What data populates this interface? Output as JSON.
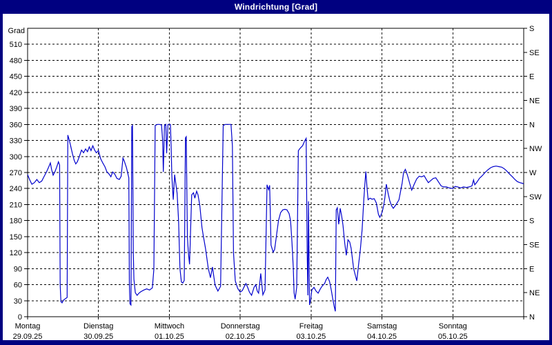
{
  "window": {
    "title": "Windrichtung [Grad]"
  },
  "colors": {
    "titlebar_bg": "#000080",
    "title_text": "#ffffff",
    "window_border": "#000080",
    "plot_bg": "#ffffff",
    "line": "#0000cc",
    "grid": "#000000",
    "text": "#000000"
  },
  "chart_data": {
    "type": "line",
    "title": "Windrichtung [Grad]",
    "ylabel": "Grad",
    "ylim": [
      0,
      540
    ],
    "grid": true,
    "y_left_ticks": [
      0,
      30,
      60,
      90,
      120,
      150,
      180,
      210,
      240,
      270,
      300,
      330,
      360,
      390,
      420,
      450,
      480,
      510
    ],
    "y_right_ticks": [
      {
        "deg": 0,
        "label": "N"
      },
      {
        "deg": 45,
        "label": "NE"
      },
      {
        "deg": 90,
        "label": "E"
      },
      {
        "deg": 135,
        "label": "SE"
      },
      {
        "deg": 180,
        "label": "S"
      },
      {
        "deg": 225,
        "label": "SW"
      },
      {
        "deg": 270,
        "label": "W"
      },
      {
        "deg": 315,
        "label": "NW"
      },
      {
        "deg": 360,
        "label": "N"
      },
      {
        "deg": 405,
        "label": "NE"
      },
      {
        "deg": 450,
        "label": "E"
      },
      {
        "deg": 495,
        "label": "SE"
      },
      {
        "deg": 540,
        "label": "S"
      }
    ],
    "x_days": [
      {
        "name": "Montag",
        "date": "29.09.25"
      },
      {
        "name": "Dienstag",
        "date": "30.09.25"
      },
      {
        "name": "Mittwoch",
        "date": "01.10.25"
      },
      {
        "name": "Donnerstag",
        "date": "02.10.25"
      },
      {
        "name": "Freitag",
        "date": "03.10.25"
      },
      {
        "name": "Samstag",
        "date": "04.10.25"
      },
      {
        "name": "Sonntag",
        "date": "05.10.25"
      }
    ],
    "series": [
      {
        "name": "Windrichtung",
        "color": "#0000cc",
        "points": [
          [
            0.0,
            266
          ],
          [
            0.03,
            256
          ],
          [
            0.06,
            248
          ],
          [
            0.095,
            251
          ],
          [
            0.13,
            257
          ],
          [
            0.165,
            251
          ],
          [
            0.2,
            254
          ],
          [
            0.235,
            263
          ],
          [
            0.27,
            272
          ],
          [
            0.3,
            281
          ],
          [
            0.321,
            288
          ],
          [
            0.34,
            275
          ],
          [
            0.36,
            265
          ],
          [
            0.385,
            271
          ],
          [
            0.41,
            280
          ],
          [
            0.435,
            290
          ],
          [
            0.452,
            284
          ],
          [
            0.46,
            60
          ],
          [
            0.47,
            28
          ],
          [
            0.487,
            26
          ],
          [
            0.506,
            31
          ],
          [
            0.535,
            34
          ],
          [
            0.558,
            36
          ],
          [
            0.568,
            340
          ],
          [
            0.585,
            332
          ],
          [
            0.61,
            318
          ],
          [
            0.633,
            305
          ],
          [
            0.657,
            293
          ],
          [
            0.68,
            286
          ],
          [
            0.702,
            290
          ],
          [
            0.73,
            300
          ],
          [
            0.76,
            312
          ],
          [
            0.79,
            307
          ],
          [
            0.818,
            314
          ],
          [
            0.845,
            309
          ],
          [
            0.87,
            318
          ],
          [
            0.895,
            311
          ],
          [
            0.92,
            320
          ],
          [
            0.945,
            312
          ],
          [
            0.97,
            307
          ],
          [
            1.0,
            311
          ],
          [
            1.03,
            296
          ],
          [
            1.06,
            288
          ],
          [
            1.09,
            281
          ],
          [
            1.12,
            271
          ],
          [
            1.15,
            267
          ],
          [
            1.175,
            262
          ],
          [
            1.2,
            271
          ],
          [
            1.23,
            267
          ],
          [
            1.26,
            259
          ],
          [
            1.295,
            257
          ],
          [
            1.32,
            263
          ],
          [
            1.345,
            297
          ],
          [
            1.365,
            291
          ],
          [
            1.395,
            279
          ],
          [
            1.428,
            260
          ],
          [
            1.436,
            60
          ],
          [
            1.445,
            24
          ],
          [
            1.458,
            22
          ],
          [
            1.47,
            356
          ],
          [
            1.48,
            358
          ],
          [
            1.492,
            120
          ],
          [
            1.5,
            70
          ],
          [
            1.52,
            45
          ],
          [
            1.545,
            40
          ],
          [
            1.57,
            44
          ],
          [
            1.6,
            47
          ],
          [
            1.64,
            50
          ],
          [
            1.68,
            52
          ],
          [
            1.72,
            50
          ],
          [
            1.76,
            54
          ],
          [
            1.782,
            89
          ],
          [
            1.8,
            358
          ],
          [
            1.83,
            360
          ],
          [
            1.86,
            360
          ],
          [
            1.89,
            359
          ],
          [
            1.905,
            330
          ],
          [
            1.915,
            271
          ],
          [
            1.932,
            358
          ],
          [
            1.95,
            360
          ],
          [
            1.962,
            306
          ],
          [
            1.98,
            360
          ],
          [
            2.0,
            360
          ],
          [
            2.015,
            360
          ],
          [
            2.025,
            320
          ],
          [
            2.035,
            266
          ],
          [
            2.045,
            240
          ],
          [
            2.055,
            219
          ],
          [
            2.075,
            266
          ],
          [
            2.09,
            250
          ],
          [
            2.11,
            231
          ],
          [
            2.13,
            180
          ],
          [
            2.15,
            90
          ],
          [
            2.17,
            65
          ],
          [
            2.19,
            63
          ],
          [
            2.21,
            68
          ],
          [
            2.228,
            335
          ],
          [
            2.238,
            337
          ],
          [
            2.255,
            150
          ],
          [
            2.268,
            120
          ],
          [
            2.285,
            98
          ],
          [
            2.315,
            228
          ],
          [
            2.34,
            232
          ],
          [
            2.36,
            222
          ],
          [
            2.385,
            235
          ],
          [
            2.405,
            228
          ],
          [
            2.43,
            208
          ],
          [
            2.46,
            167
          ],
          [
            2.48,
            151
          ],
          [
            2.51,
            128
          ],
          [
            2.55,
            90
          ],
          [
            2.58,
            73
          ],
          [
            2.608,
            93
          ],
          [
            2.645,
            59
          ],
          [
            2.685,
            48
          ],
          [
            2.723,
            57
          ],
          [
            2.76,
            358
          ],
          [
            2.79,
            360
          ],
          [
            2.83,
            360
          ],
          [
            2.87,
            360
          ],
          [
            2.89,
            320
          ],
          [
            2.905,
            120
          ],
          [
            2.93,
            67
          ],
          [
            2.965,
            53
          ],
          [
            3.0,
            46
          ],
          [
            3.03,
            49
          ],
          [
            3.055,
            56
          ],
          [
            3.08,
            62
          ],
          [
            3.105,
            55
          ],
          [
            3.13,
            46
          ],
          [
            3.16,
            40
          ],
          [
            3.195,
            55
          ],
          [
            3.22,
            60
          ],
          [
            3.24,
            48
          ],
          [
            3.26,
            44
          ],
          [
            3.29,
            81
          ],
          [
            3.32,
            41
          ],
          [
            3.35,
            50
          ],
          [
            3.378,
            247
          ],
          [
            3.4,
            238
          ],
          [
            3.415,
            246
          ],
          [
            3.435,
            134
          ],
          [
            3.465,
            121
          ],
          [
            3.485,
            126
          ],
          [
            3.51,
            150
          ],
          [
            3.54,
            180
          ],
          [
            3.57,
            195
          ],
          [
            3.6,
            200
          ],
          [
            3.63,
            201
          ],
          [
            3.66,
            200
          ],
          [
            3.69,
            193
          ],
          [
            3.71,
            180
          ],
          [
            3.73,
            140
          ],
          [
            3.748,
            93
          ],
          [
            3.76,
            45
          ],
          [
            3.775,
            33
          ],
          [
            3.797,
            55
          ],
          [
            3.82,
            311
          ],
          [
            3.85,
            316
          ],
          [
            3.88,
            320
          ],
          [
            3.91,
            329
          ],
          [
            3.93,
            334
          ],
          [
            3.945,
            120
          ],
          [
            3.955,
            40
          ],
          [
            3.963,
            216
          ],
          [
            3.978,
            22
          ],
          [
            3.995,
            33
          ],
          [
            4.01,
            50
          ],
          [
            4.04,
            55
          ],
          [
            4.07,
            48
          ],
          [
            4.1,
            44
          ],
          [
            4.13,
            52
          ],
          [
            4.16,
            58
          ],
          [
            4.19,
            62
          ],
          [
            4.215,
            70
          ],
          [
            4.235,
            74
          ],
          [
            4.26,
            66
          ],
          [
            4.285,
            50
          ],
          [
            4.305,
            34
          ],
          [
            4.325,
            20
          ],
          [
            4.342,
            10
          ],
          [
            4.355,
            200
          ],
          [
            4.37,
            204
          ],
          [
            4.39,
            173
          ],
          [
            4.41,
            203
          ],
          [
            4.43,
            190
          ],
          [
            4.45,
            171
          ],
          [
            4.475,
            138
          ],
          [
            4.497,
            115
          ],
          [
            4.52,
            144
          ],
          [
            4.545,
            140
          ],
          [
            4.565,
            128
          ],
          [
            4.6,
            90
          ],
          [
            4.645,
            67
          ],
          [
            4.672,
            100
          ],
          [
            4.695,
            125
          ],
          [
            4.72,
            163
          ],
          [
            4.745,
            222
          ],
          [
            4.76,
            250
          ],
          [
            4.772,
            272
          ],
          [
            4.79,
            240
          ],
          [
            4.805,
            219
          ],
          [
            4.83,
            222
          ],
          [
            4.86,
            220
          ],
          [
            4.89,
            221
          ],
          [
            4.92,
            213
          ],
          [
            4.95,
            192
          ],
          [
            4.97,
            186
          ],
          [
            5.0,
            195
          ],
          [
            5.02,
            205
          ],
          [
            5.04,
            222
          ],
          [
            5.062,
            248
          ],
          [
            5.085,
            232
          ],
          [
            5.11,
            217
          ],
          [
            5.135,
            208
          ],
          [
            5.16,
            203
          ],
          [
            5.2,
            210
          ],
          [
            5.24,
            219
          ],
          [
            5.285,
            250
          ],
          [
            5.305,
            270
          ],
          [
            5.33,
            276
          ],
          [
            5.36,
            265
          ],
          [
            5.395,
            248
          ],
          [
            5.42,
            237
          ],
          [
            5.455,
            248
          ],
          [
            5.49,
            258
          ],
          [
            5.525,
            263
          ],
          [
            5.56,
            262
          ],
          [
            5.595,
            264
          ],
          [
            5.625,
            257
          ],
          [
            5.655,
            251
          ],
          [
            5.69,
            255
          ],
          [
            5.725,
            259
          ],
          [
            5.76,
            260
          ],
          [
            5.8,
            252
          ],
          [
            5.835,
            245
          ],
          [
            5.87,
            243
          ],
          [
            5.91,
            243
          ],
          [
            5.95,
            241
          ],
          [
            6.0,
            240
          ],
          [
            6.03,
            244
          ],
          [
            6.07,
            243
          ],
          [
            6.11,
            241
          ],
          [
            6.15,
            243
          ],
          [
            6.19,
            242
          ],
          [
            6.23,
            243
          ],
          [
            6.27,
            245
          ],
          [
            6.292,
            256
          ],
          [
            6.31,
            247
          ],
          [
            6.34,
            252
          ],
          [
            6.375,
            259
          ],
          [
            6.415,
            264
          ],
          [
            6.455,
            270
          ],
          [
            6.495,
            275
          ],
          [
            6.535,
            279
          ],
          [
            6.57,
            281
          ],
          [
            6.61,
            282
          ],
          [
            6.65,
            281
          ],
          [
            6.69,
            280
          ],
          [
            6.725,
            277
          ],
          [
            6.76,
            273
          ],
          [
            6.8,
            267
          ],
          [
            6.84,
            262
          ],
          [
            6.875,
            257
          ],
          [
            6.91,
            253
          ],
          [
            6.945,
            251
          ],
          [
            6.975,
            250
          ],
          [
            7.0,
            249
          ]
        ]
      }
    ]
  }
}
